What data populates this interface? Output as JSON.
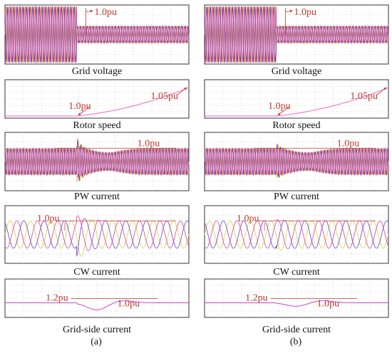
{
  "figure": {
    "column_labels": [
      "(a)",
      "(b)"
    ],
    "colors": {
      "phase_a": "#d4d43a",
      "phase_b": "#6a3fc8",
      "phase_c": "#e0409a",
      "annotation": "#c0392b",
      "speed": "#ee66cc",
      "grid_current": "#cc44cc",
      "frame": "#333333"
    }
  },
  "chart_data": [
    {
      "type": "line",
      "column": "(a)",
      "panel": "grid-voltage",
      "caption": "Grid voltage",
      "annotations": [
        {
          "text": "1.0pu"
        }
      ],
      "series": [
        "three-phase"
      ],
      "amplitude_before_pu": 1.0,
      "amplitude_after_pu": 0.3,
      "dip_time_fraction": 0.39,
      "grid": true
    },
    {
      "type": "line",
      "column": "(a)",
      "panel": "rotor-speed",
      "caption": "Rotor speed",
      "annotations": [
        {
          "text": "1.0pu"
        },
        {
          "text": "1.05pu"
        }
      ],
      "start_pu": 1.0,
      "end_pu": 1.05,
      "rise_start_fraction": 0.39,
      "grid": true
    },
    {
      "type": "line",
      "column": "(a)",
      "panel": "pw-current",
      "caption": "PW current",
      "annotations": [
        {
          "text": "1.0pu"
        }
      ],
      "amplitude_pu": 1.0,
      "transient_peak_pu": 1.6,
      "grid": true
    },
    {
      "type": "line",
      "column": "(a)",
      "panel": "cw-current",
      "caption": "CW current",
      "annotations": [
        {
          "text": "1.0pu"
        }
      ],
      "amplitude_pu": 1.0,
      "transient_peak_pu": 1.8,
      "grid": true
    },
    {
      "type": "line",
      "column": "(a)",
      "panel": "grid-side-current",
      "caption": "Grid-side current",
      "annotations": [
        {
          "text": "1.2pu"
        },
        {
          "text": "1.0pu"
        }
      ],
      "steady_pu": 1.0,
      "dip_depth_pu": 0.2,
      "grid": true
    },
    {
      "type": "line",
      "column": "(b)",
      "panel": "grid-voltage",
      "caption": "Grid voltage",
      "annotations": [
        {
          "text": "1.0pu"
        }
      ],
      "series": [
        "three-phase"
      ],
      "amplitude_before_pu": 1.0,
      "amplitude_after_pu": 0.3,
      "dip_time_fraction": 0.39,
      "grid": true
    },
    {
      "type": "line",
      "column": "(b)",
      "panel": "rotor-speed",
      "caption": "Rotor speed",
      "annotations": [
        {
          "text": "1.0pu"
        },
        {
          "text": "1.05pu"
        }
      ],
      "start_pu": 1.0,
      "end_pu": 1.05,
      "rise_start_fraction": 0.39,
      "grid": true
    },
    {
      "type": "line",
      "column": "(b)",
      "panel": "pw-current",
      "caption": "PW current",
      "annotations": [
        {
          "text": "1.0pu"
        }
      ],
      "amplitude_pu": 1.0,
      "transient_peak_pu": 1.3,
      "grid": true
    },
    {
      "type": "line",
      "column": "(b)",
      "panel": "cw-current",
      "caption": "CW current",
      "annotations": [
        {
          "text": "1.0pu"
        }
      ],
      "amplitude_pu": 1.0,
      "transient_peak_pu": 1.2,
      "grid": true
    },
    {
      "type": "line",
      "column": "(b)",
      "panel": "grid-side-current",
      "caption": "Grid-side current",
      "annotations": [
        {
          "text": "1.2pu"
        },
        {
          "text": "1.0pu"
        }
      ],
      "steady_pu": 1.0,
      "dip_depth_pu": 0.1,
      "grid": true
    }
  ]
}
